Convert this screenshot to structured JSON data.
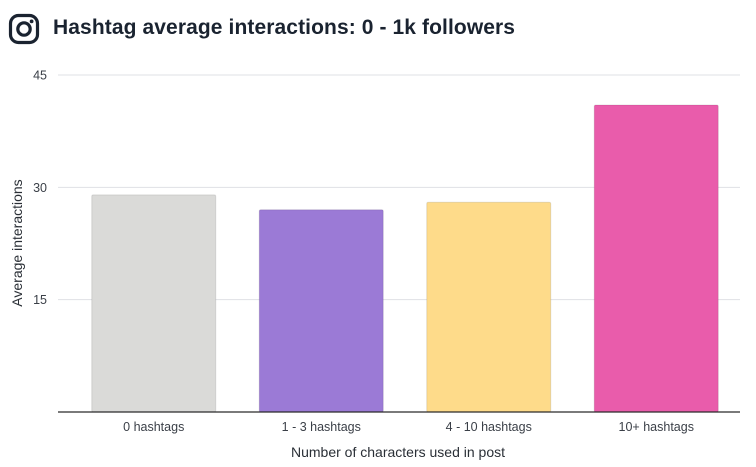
{
  "header": {
    "title": "Hashtag average interactions: 0 - 1k followers",
    "logo_icon": "instagram-icon"
  },
  "colors": {
    "grid": "#dfe1e5",
    "baseline": "#2b2b2b",
    "title": "#1a2330"
  },
  "chart_data": {
    "type": "bar",
    "title": "Hashtag average interactions: 0 - 1k followers",
    "xlabel": "Number of characters used in post",
    "ylabel": "Average interactions",
    "categories": [
      "0 hashtags",
      "1 - 3 hashtags",
      "4 - 10 hashtags",
      "10+ hashtags"
    ],
    "values": [
      29,
      27,
      28,
      41
    ],
    "bar_colors": [
      "#dadad8",
      "#9b7ad6",
      "#fedb8a",
      "#e95cab"
    ],
    "yticks": [
      15,
      30,
      45
    ],
    "ylim": [
      0,
      45
    ],
    "grid": true,
    "legend": "none"
  }
}
